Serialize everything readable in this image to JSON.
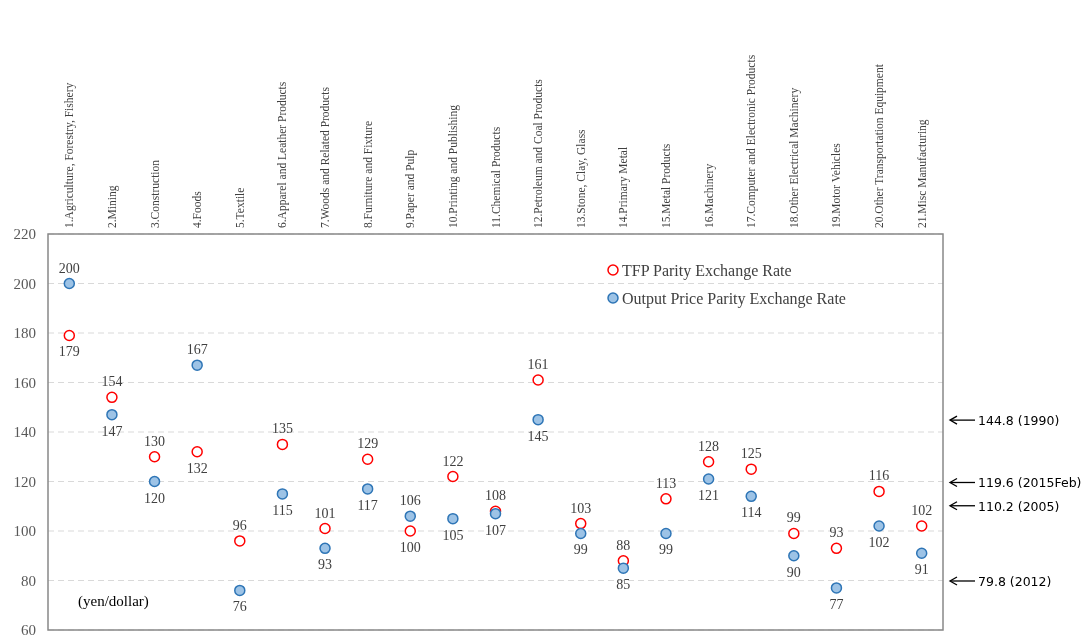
{
  "chart_data": {
    "type": "scatter",
    "ylabel": "(yen/dollar)",
    "categories": [
      "1.Agriculture, Forestry, Fishery",
      "2.Mining",
      "3.Construction",
      "4.Foods",
      "5.Textile",
      "6.Apparel and Leather Products",
      "7.Woods and Related Products",
      "8.Furniture and Fixture",
      "9.Paper and Pulp",
      "10.Printing and Publishing",
      "11.Chemical Products",
      "12.Petroleum and Coal Products",
      "13.Stone, Clay, Glass",
      "14.Primary Metal",
      "15.Metal Products",
      "16.Machinery",
      "17.Computer and Electronic Products",
      "18.Other Electrical Machinery",
      "19.Motor Vehicles",
      "20.Other Transportation Equipment",
      "21.Misc Manufacturing"
    ],
    "series": [
      {
        "name": "TFP Parity Exchange Rate",
        "color": "#ff0000",
        "values": [
          179,
          154,
          130,
          132,
          96,
          135,
          101,
          129,
          100,
          122,
          108,
          161,
          103,
          88,
          113,
          128,
          125,
          99,
          93,
          116,
          102
        ]
      },
      {
        "name": "Output Price Parity Exchange Rate",
        "color": "#2e75b6",
        "values": [
          200,
          147,
          120,
          167,
          76,
          115,
          93,
          117,
          106,
          105,
          107,
          145,
          99,
          85,
          99,
          121,
          114,
          90,
          77,
          102,
          91
        ]
      }
    ],
    "ylim": [
      60,
      220
    ],
    "yticks": [
      60,
      80,
      100,
      120,
      140,
      160,
      180,
      200,
      220
    ],
    "grid": "y",
    "legend": "top right",
    "marker": "circle",
    "data_labels": true,
    "ref_lines": [
      {
        "axis": "y",
        "value": 144.8,
        "label": "144.8 (1990)"
      },
      {
        "axis": "y",
        "value": 119.6,
        "label": "119.6 (2015Feb)"
      },
      {
        "axis": "y",
        "value": 110.2,
        "label": "110.2 (2005)"
      },
      {
        "axis": "y",
        "value": 79.8,
        "label": "79.8 (2012)"
      }
    ]
  }
}
